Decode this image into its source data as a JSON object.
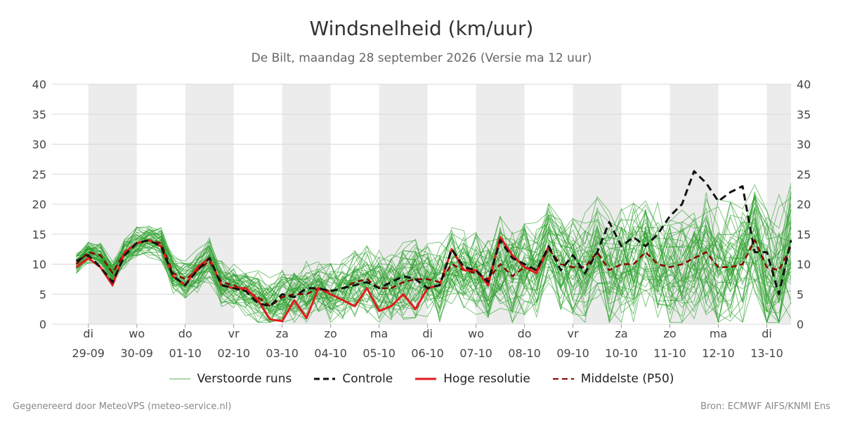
{
  "header": {
    "title": "Windsnelheid (km/uur)",
    "subtitle": "De Bilt, maandag 28 september 2026 (Versie ma 12 uur)"
  },
  "footer": {
    "left": "Gegenereerd door MeteoVPS (meteo-service.nl)",
    "right": "Bron: ECMWF AIFS/KNMI Ens"
  },
  "legend": [
    {
      "label": "Verstoorde runs",
      "color": "#2ca02c",
      "style": "thin"
    },
    {
      "label": "Controle",
      "color": "#111111",
      "style": "dashed"
    },
    {
      "label": "Hoge resolutie",
      "color": "#e31a1c",
      "style": "solid"
    },
    {
      "label": "Middelste (P50)",
      "color": "#8b0000",
      "style": "dashed"
    }
  ],
  "chart_data": {
    "type": "line",
    "ylim": [
      0,
      40
    ],
    "yticks": [
      0,
      5,
      10,
      15,
      20,
      25,
      30,
      35,
      40
    ],
    "grid": true,
    "legend_position": "bottom",
    "x_range_days": [
      -0.75,
      14.5
    ],
    "shaded_days": [
      0,
      2,
      4,
      6,
      8,
      10,
      12,
      14
    ],
    "day_labels": [
      {
        "day": "di",
        "date": "29-09"
      },
      {
        "day": "wo",
        "date": "30-09"
      },
      {
        "day": "do",
        "date": "01-10"
      },
      {
        "day": "vr",
        "date": "02-10"
      },
      {
        "day": "za",
        "date": "03-10"
      },
      {
        "day": "zo",
        "date": "04-10"
      },
      {
        "day": "ma",
        "date": "05-10"
      },
      {
        "day": "di",
        "date": "06-10"
      },
      {
        "day": "wo",
        "date": "07-10"
      },
      {
        "day": "do",
        "date": "08-10"
      },
      {
        "day": "vr",
        "date": "09-10"
      },
      {
        "day": "za",
        "date": "10-10"
      },
      {
        "day": "zo",
        "date": "11-10"
      },
      {
        "day": "ma",
        "date": "12-10"
      },
      {
        "day": "di",
        "date": "13-10"
      }
    ],
    "series": [
      {
        "name": "Hoge resolutie",
        "color": "#e31a1c",
        "x": [
          -0.25,
          0,
          0.25,
          0.5,
          0.75,
          1,
          1.25,
          1.5,
          1.75,
          2,
          2.25,
          2.5,
          2.75,
          3,
          3.25,
          3.5,
          3.75,
          4,
          4.25,
          4.5,
          4.75,
          5,
          5.25,
          5.5,
          5.75,
          6,
          6.25,
          6.5,
          6.75,
          7,
          7.25,
          7.5,
          7.75,
          8,
          8.25,
          8.5,
          8.75,
          9,
          9.25,
          9.5
        ],
        "values": [
          9.5,
          11,
          9.5,
          6.5,
          12,
          13.5,
          14,
          13,
          8,
          6.5,
          9.5,
          11,
          6.5,
          6,
          6,
          4,
          0.8,
          0.5,
          4,
          1,
          6,
          5,
          4,
          3,
          6,
          2.2,
          3,
          5,
          2.5,
          6,
          6.5,
          12.5,
          9,
          9,
          6.5,
          14.5,
          11.5,
          9.5,
          8.5,
          13
        ]
      },
      {
        "name": "Controle",
        "color": "#111111",
        "x": [
          -0.25,
          0,
          0.25,
          0.5,
          0.75,
          1,
          1.25,
          1.5,
          1.75,
          2,
          2.25,
          2.5,
          2.75,
          3,
          3.25,
          3.5,
          3.75,
          4,
          4.25,
          4.5,
          4.75,
          5,
          5.25,
          5.5,
          5.75,
          6,
          6.25,
          6.5,
          6.75,
          7,
          7.25,
          7.5,
          7.75,
          8,
          8.25,
          8.5,
          8.75,
          9,
          9.25,
          9.5,
          9.75,
          10,
          10.25,
          10.5,
          10.75,
          11,
          11.25,
          11.5,
          11.75,
          12,
          12.25,
          12.5,
          12.75,
          13,
          13.25,
          13.5,
          13.75,
          14,
          14.25,
          14.5
        ],
        "values": [
          10.5,
          11.5,
          9.5,
          7,
          11.5,
          13.5,
          14,
          13,
          8,
          6.5,
          9,
          11,
          6.5,
          6,
          5.5,
          3.5,
          3,
          5,
          4.5,
          6,
          6,
          5.5,
          6,
          6.5,
          7,
          6,
          7,
          8,
          7.5,
          6,
          6.5,
          12.5,
          9.5,
          9,
          7,
          14,
          11,
          10,
          9,
          13,
          9,
          11.5,
          8.5,
          12,
          17,
          13,
          14.5,
          13,
          15,
          18,
          20,
          25.5,
          23.5,
          20.5,
          22,
          23,
          12,
          12,
          5,
          14
        ]
      },
      {
        "name": "Middelste (P50)",
        "color": "#8b0000",
        "x": [
          -0.25,
          0,
          0.25,
          0.5,
          0.75,
          1,
          1.25,
          1.5,
          1.75,
          2,
          2.25,
          2.5,
          2.75,
          3,
          3.25,
          3.5,
          3.75,
          4,
          4.25,
          4.5,
          4.75,
          5,
          5.25,
          5.5,
          5.75,
          6,
          6.25,
          6.5,
          6.75,
          7,
          7.25,
          7.5,
          7.75,
          8,
          8.25,
          8.5,
          8.75,
          9,
          9.25,
          9.5,
          9.75,
          10,
          10.25,
          10.5,
          10.75,
          11,
          11.25,
          11.5,
          11.75,
          12,
          12.25,
          12.5,
          12.75,
          13,
          13.25,
          13.5,
          13.75,
          14,
          14.25,
          14.5
        ],
        "values": [
          10,
          12,
          11.5,
          8.5,
          12,
          13.5,
          14,
          13.5,
          8.5,
          7.5,
          9,
          10.5,
          7,
          6.5,
          5.5,
          4.5,
          3,
          4.5,
          5,
          5,
          6,
          5.5,
          6,
          7,
          7.5,
          6,
          6,
          7,
          7.5,
          7.5,
          7,
          10,
          9,
          8.5,
          7.5,
          10,
          8,
          9.5,
          9,
          12.5,
          10,
          9.5,
          9.5,
          12,
          9,
          10,
          10,
          12,
          10,
          9.5,
          10,
          11,
          12,
          9.5,
          9.5,
          10,
          14,
          9.5,
          9,
          13
        ]
      }
    ]
  }
}
